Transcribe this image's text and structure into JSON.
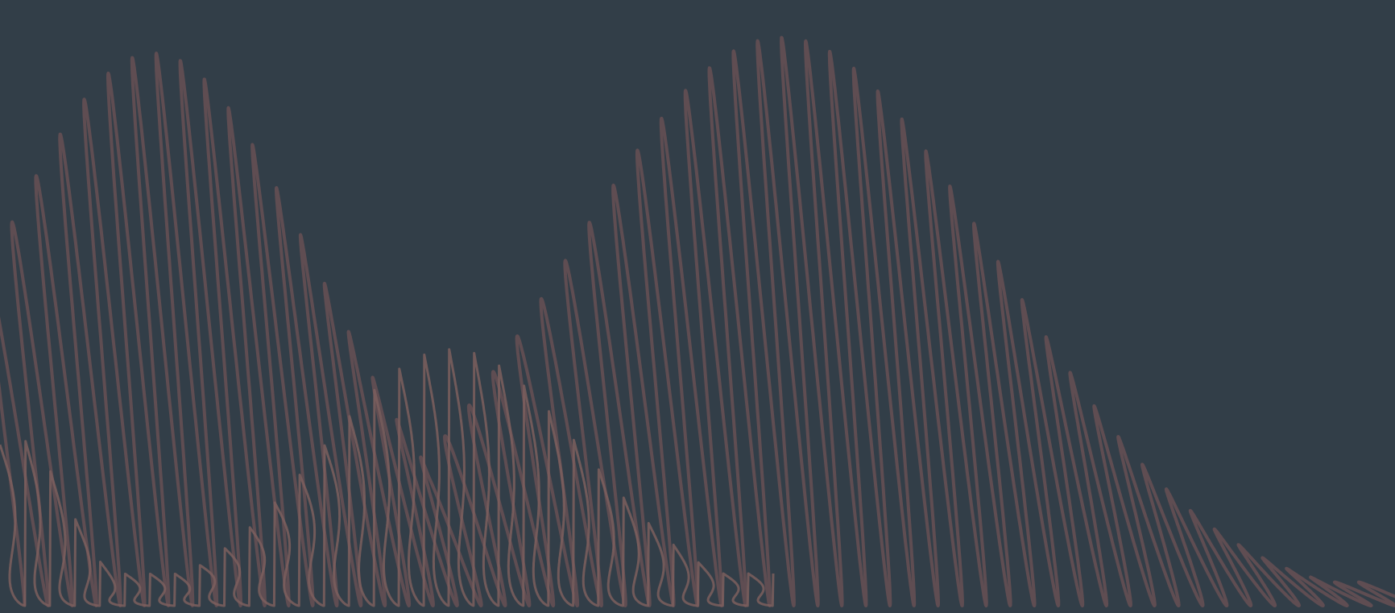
{
  "artwork": {
    "colors": {
      "background": "#323e48",
      "primary_wave": "#5f4d52",
      "secondary_wave": "#7d5f5e"
    }
  }
}
